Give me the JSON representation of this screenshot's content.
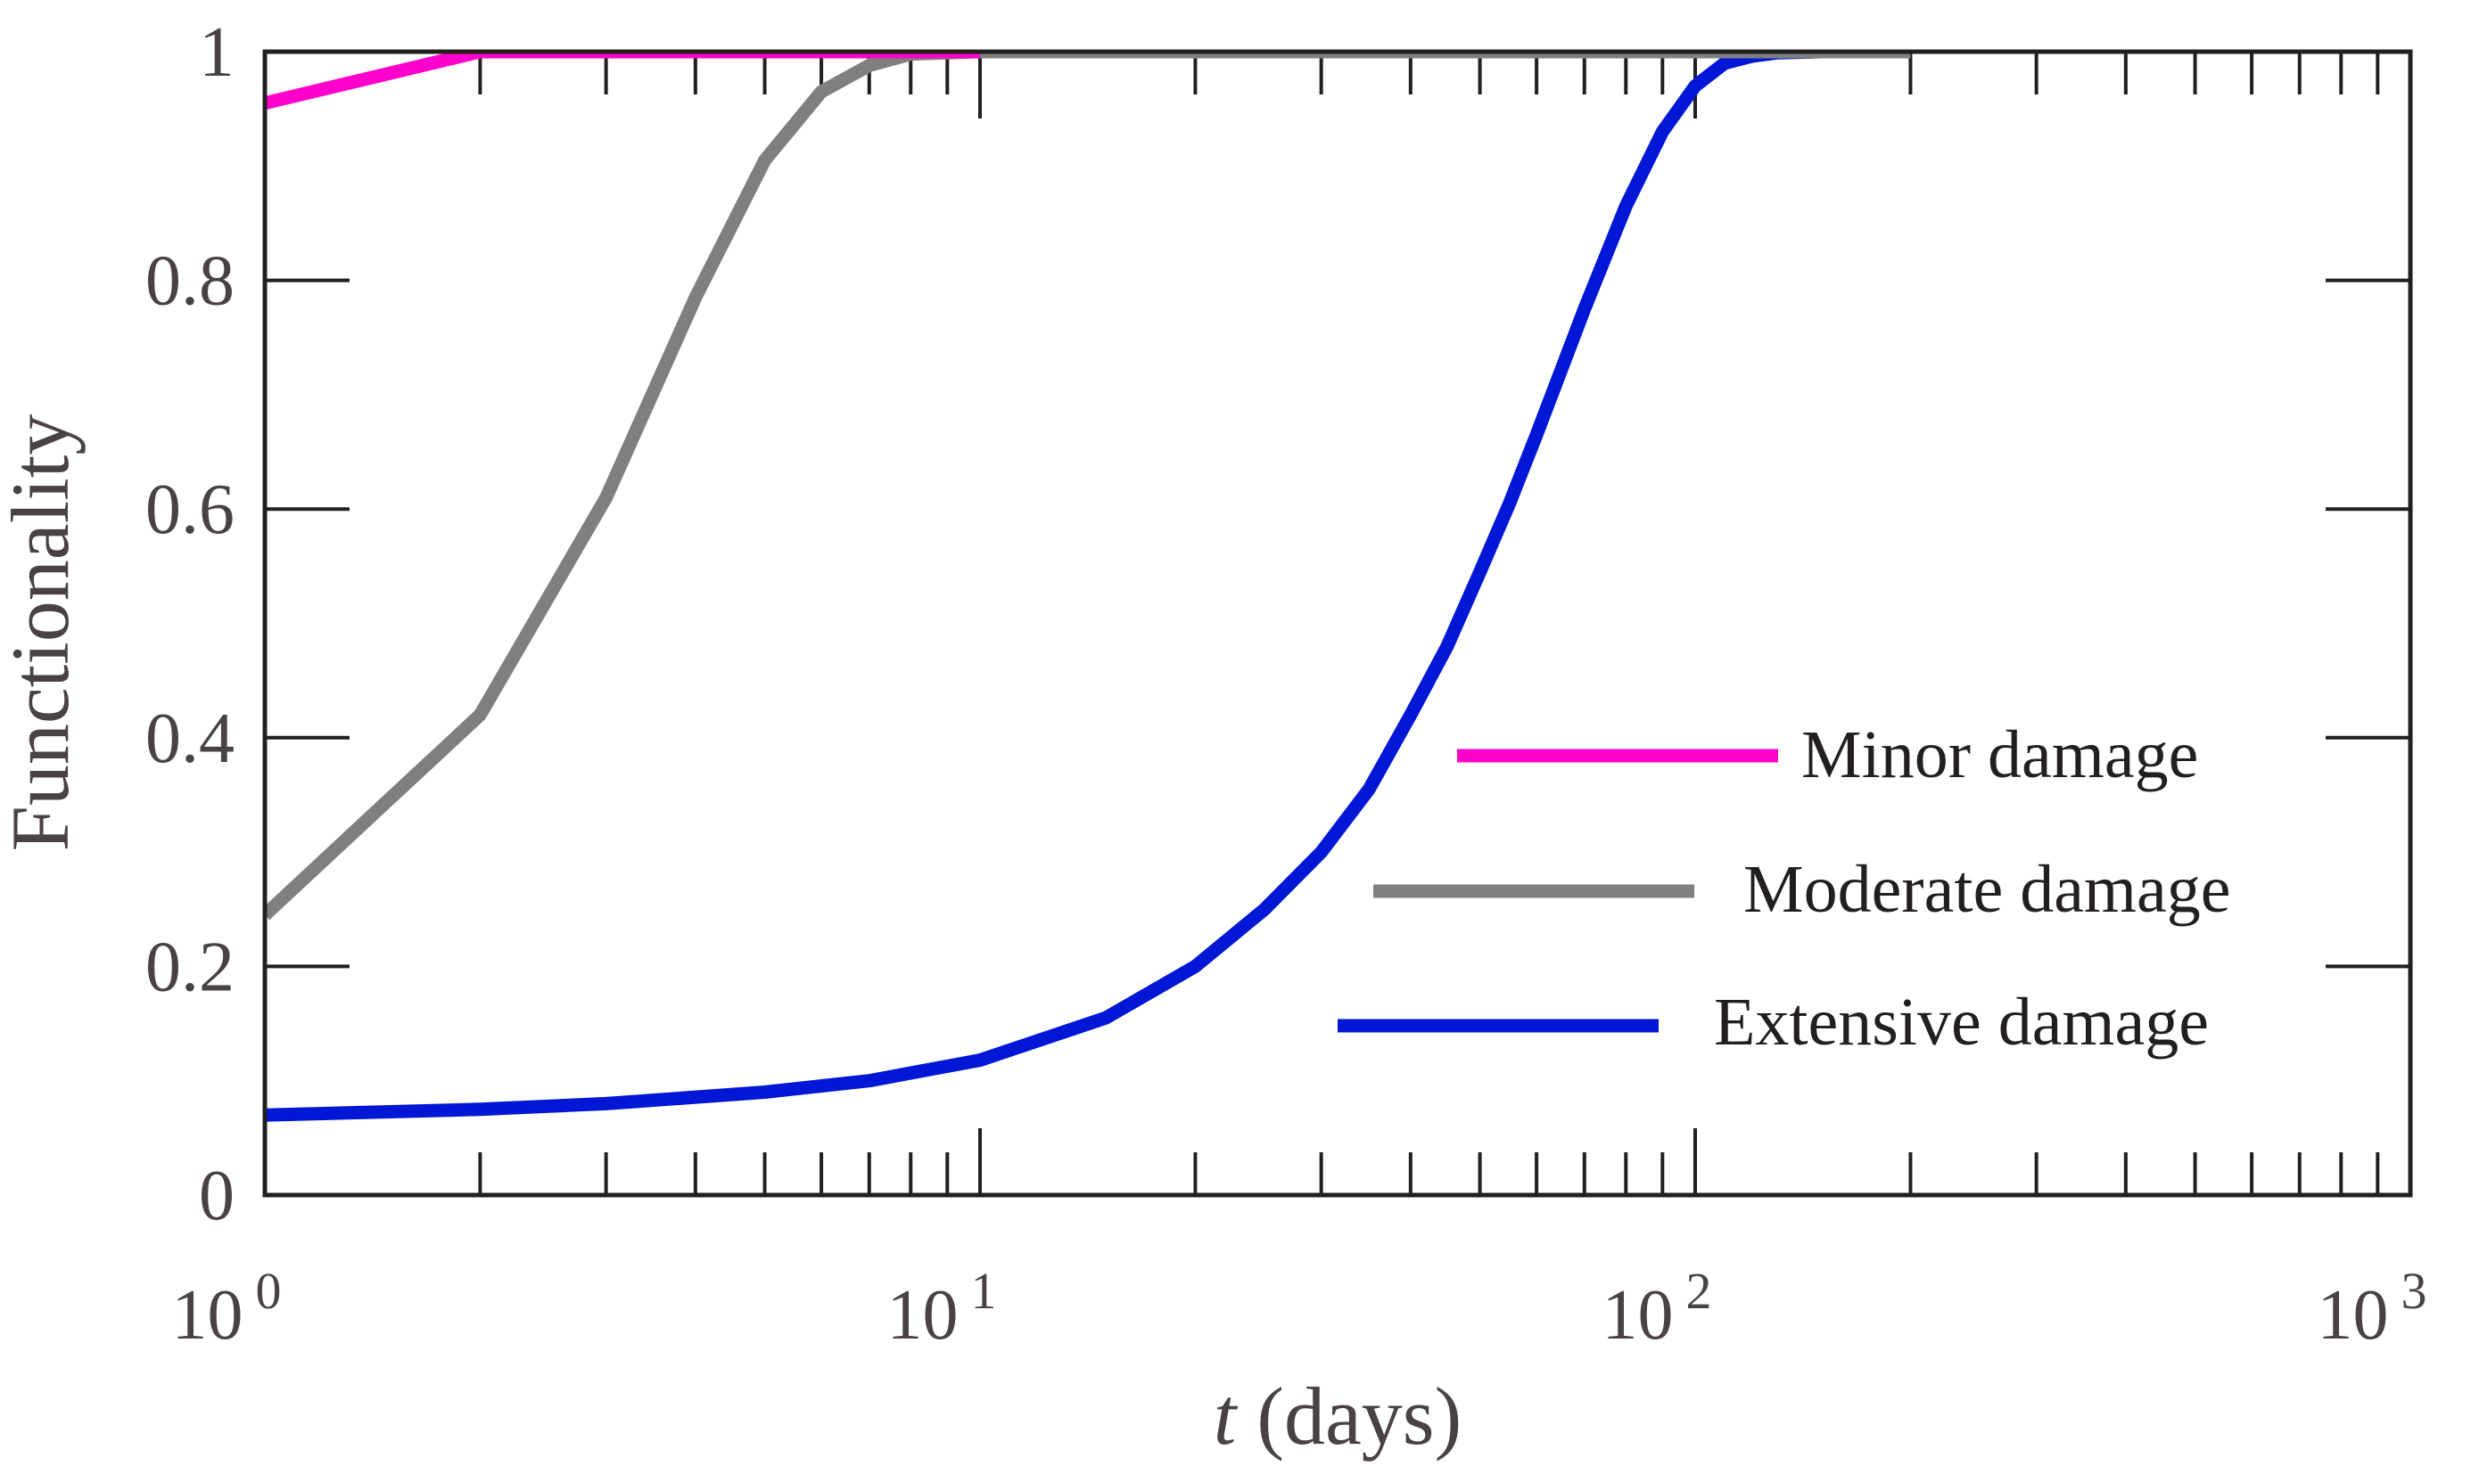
{
  "chart_data": {
    "type": "line",
    "xscale": "log",
    "xlim": [
      1,
      1000
    ],
    "ylim": [
      0,
      1
    ],
    "x_ticks": [
      {
        "base": "10",
        "exp": "0"
      },
      {
        "base": "10",
        "exp": "1"
      },
      {
        "base": "10",
        "exp": "2"
      },
      {
        "base": "10",
        "exp": "3"
      }
    ],
    "y_ticks": [
      "0",
      "0.2",
      "0.4",
      "0.6",
      "0.8",
      "1"
    ],
    "y_tick_values": [
      0,
      0.2,
      0.4,
      0.6,
      0.8,
      1
    ],
    "xlabel": {
      "italic": "t",
      "rest": " (days)"
    },
    "ylabel": "Functionality",
    "grid": false,
    "legend": "lower-right",
    "series": [
      {
        "name": "Minor damage",
        "color": "#ff00cc",
        "x": [
          1,
          2,
          3,
          10
        ],
        "y": [
          0.955,
          1.0,
          1.0,
          1.0
        ]
      },
      {
        "name": "Moderate damage",
        "color": "#7f7f7f",
        "x": [
          1,
          2,
          3,
          4,
          5,
          6,
          7,
          8,
          10,
          100,
          200
        ],
        "y": [
          0.245,
          0.42,
          0.61,
          0.785,
          0.905,
          0.965,
          0.988,
          0.998,
          1.0,
          1.0,
          1.0
        ]
      },
      {
        "name": "Extensive damage",
        "color": "#0018d6",
        "x": [
          1,
          2,
          3,
          5,
          7,
          10,
          15,
          20,
          25,
          30,
          35,
          40,
          45,
          50,
          55,
          60,
          70,
          80,
          90,
          100,
          110,
          120,
          130,
          150,
          200
        ],
        "y": [
          0.07,
          0.075,
          0.08,
          0.09,
          0.1,
          0.118,
          0.155,
          0.2,
          0.25,
          0.3,
          0.355,
          0.42,
          0.48,
          0.545,
          0.605,
          0.665,
          0.775,
          0.865,
          0.93,
          0.97,
          0.99,
          0.996,
          0.999,
          1.0,
          1.0
        ]
      }
    ]
  }
}
